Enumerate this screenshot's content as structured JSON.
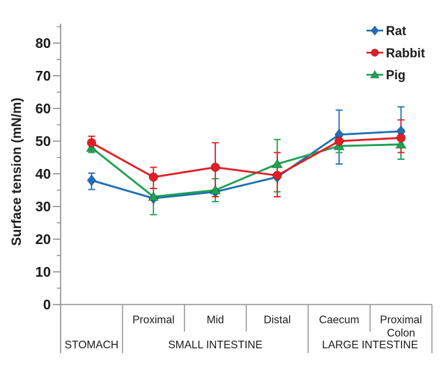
{
  "colors": {
    "background": "#ffffff",
    "axis_line": "#8f8f8f",
    "text": "#1d1b1c",
    "rat_blue": "#1F6FB6",
    "rabbit_red": "#E11F26",
    "pig_green": "#1FA151"
  },
  "chart_data": {
    "type": "line",
    "title": "",
    "xlabel": "",
    "ylabel": "Surface tension (mN/m)",
    "ylim": [
      0,
      86
    ],
    "y_ticks": [
      0,
      10,
      20,
      30,
      40,
      50,
      60,
      70,
      80
    ],
    "y_minor_tick_step": 5,
    "grid": false,
    "legend_position": "top-right",
    "categories": [
      "Stomach",
      "Proximal",
      "Mid",
      "Distal",
      "Caecum",
      "Proximal Colon"
    ],
    "x_sub_labels": [
      "",
      "Proximal",
      "Mid",
      "Distal",
      "Caecum",
      "Proximal\nColon"
    ],
    "x_group_labels": [
      {
        "label": "STOMACH",
        "from": 0,
        "to": 1
      },
      {
        "label": "SMALL INTESTINE",
        "from": 1,
        "to": 4
      },
      {
        "label": "LARGE INTESTINE",
        "from": 4,
        "to": 6
      }
    ],
    "series": [
      {
        "name": "Rat",
        "color": "#1F6FB6",
        "marker": "diamond",
        "values": [
          38,
          32.5,
          34.5,
          39,
          52,
          53
        ],
        "err_plus": [
          2.2,
          0,
          0,
          0,
          7.5,
          7.5
        ],
        "err_minus": [
          2.8,
          0,
          0,
          0,
          9,
          8.5
        ]
      },
      {
        "name": "Rabbit",
        "color": "#E11F26",
        "marker": "circle",
        "values": [
          49.5,
          39,
          42,
          39.5,
          50,
          51
        ],
        "err_plus": [
          2,
          3,
          7.5,
          7,
          1.5,
          5.5
        ],
        "err_minus": [
          2,
          3.5,
          9,
          6.5,
          1.5,
          4.5
        ]
      },
      {
        "name": "Pig",
        "color": "#1FA151",
        "marker": "triangle",
        "values": [
          48,
          33,
          35,
          43,
          48.5,
          49
        ],
        "err_plus": [
          1.5,
          2.5,
          3.5,
          7.5,
          2,
          4.5
        ],
        "err_minus": [
          1.5,
          5.5,
          3.5,
          8.5,
          2,
          4.5
        ]
      }
    ],
    "draw_order": [
      0,
      2,
      1
    ]
  }
}
